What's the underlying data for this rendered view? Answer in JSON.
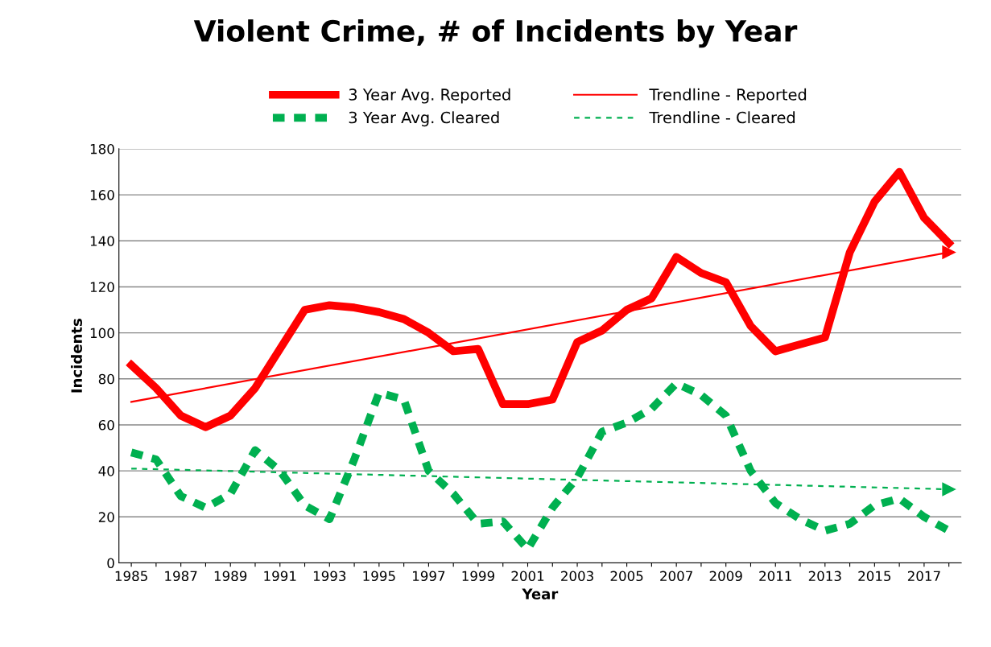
{
  "chart_data": {
    "type": "line",
    "title": "Violent Crime, # of Incidents by Year",
    "xlabel": "Year",
    "ylabel": "Incidents",
    "categories": [
      "1985",
      null,
      "1987",
      null,
      "1989",
      null,
      "1991",
      null,
      "1993",
      null,
      "1995",
      null,
      "1997",
      null,
      "1999",
      null,
      "2001",
      null,
      "2003",
      null,
      "2005",
      null,
      "2007",
      null,
      "2009",
      null,
      "2011",
      null,
      "2013",
      null,
      "2015",
      null,
      "2017",
      null
    ],
    "series": [
      {
        "name": "3 Year Avg. Reported",
        "color": "#ff0000",
        "line_style": "solid",
        "values": [
          86,
          76,
          64,
          59,
          64,
          76,
          93,
          110,
          112,
          111,
          109,
          106,
          100,
          92,
          93,
          69,
          69,
          71,
          96,
          101,
          110,
          115,
          133,
          126,
          122,
          103,
          92,
          95,
          98,
          135,
          157,
          170,
          150,
          139
        ]
      },
      {
        "name": "3 Year Avg. Cleared",
        "color": "#00b050",
        "line_style": "dashed",
        "values": [
          48,
          45,
          29,
          24,
          30,
          49,
          40,
          25,
          19,
          45,
          74,
          71,
          40,
          30,
          17,
          18,
          6,
          24,
          37,
          57,
          61,
          67,
          78,
          73,
          64,
          40,
          26,
          19,
          14,
          17,
          25,
          28,
          20,
          14
        ]
      },
      {
        "name": "Trendline - Reported",
        "color": "#ff0000",
        "line_style": "solid",
        "marker": "triangle",
        "values": [
          70,
          null,
          null,
          null,
          null,
          null,
          null,
          null,
          null,
          null,
          null,
          null,
          null,
          null,
          null,
          null,
          null,
          null,
          null,
          null,
          null,
          null,
          null,
          null,
          null,
          null,
          null,
          null,
          null,
          null,
          null,
          null,
          null,
          135
        ]
      },
      {
        "name": "Trendline - Cleared",
        "color": "#00b050",
        "line_style": "dashed",
        "marker": "triangle",
        "values": [
          41,
          null,
          null,
          null,
          null,
          null,
          null,
          null,
          null,
          null,
          null,
          null,
          null,
          null,
          null,
          null,
          null,
          null,
          null,
          null,
          null,
          null,
          null,
          null,
          null,
          null,
          null,
          null,
          null,
          null,
          null,
          null,
          null,
          32
        ]
      }
    ],
    "ylim": [
      0,
      180
    ],
    "yticks": [
      0,
      20,
      40,
      60,
      80,
      100,
      120,
      140,
      160,
      180
    ],
    "grid": "y",
    "legend": "top"
  }
}
